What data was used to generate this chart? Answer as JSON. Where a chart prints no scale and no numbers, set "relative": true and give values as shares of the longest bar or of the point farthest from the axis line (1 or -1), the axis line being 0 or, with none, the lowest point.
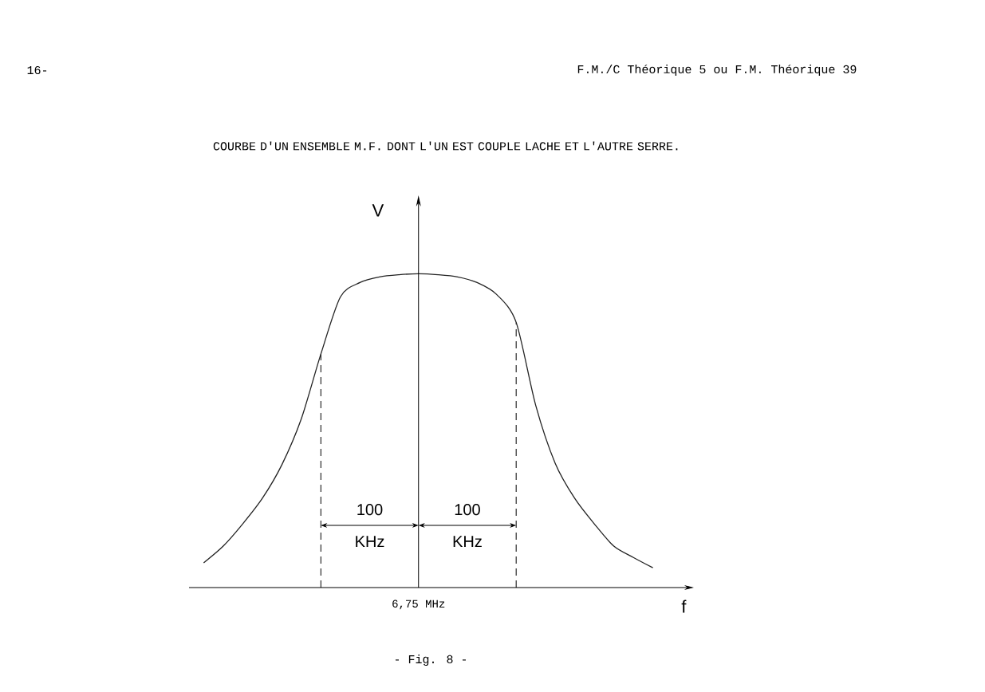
{
  "chart_data": {
    "type": "line",
    "title": "COURBE D'UN ENSEMBLE M.F. DONT L'UN EST COUPLE LACHE ET L'AUTRE SERRE.",
    "xlabel": "f",
    "ylabel": "V",
    "relative": true,
    "categories": [
      null,
      null,
      null,
      null,
      null,
      null,
      null,
      null,
      null,
      null,
      null,
      null,
      null,
      null,
      null,
      null,
      null,
      null,
      null,
      null,
      null,
      null,
      null,
      null
    ],
    "series": [
      {
        "color": "#222222",
        "values": [
          0.079,
          0.132,
          0.203,
          0.284,
          0.391,
          0.538,
          0.744,
          0.926,
          0.972,
          0.99,
          0.997,
          1.0,
          0.997,
          0.99,
          0.972,
          0.934,
          0.845,
          0.581,
          0.396,
          0.284,
          0.203,
          0.132,
          0.096,
          0.063
        ]
      }
    ],
    "annotations": [
      "6,75 MHz",
      "100 KHz",
      "100 KHz",
      "16-",
      "F.M./C Théorique 5  ou  F.M. Théorique 39",
      "- Fig. 8 -"
    ],
    "grid": false,
    "marker": "none",
    "line_style": "solid"
  }
}
